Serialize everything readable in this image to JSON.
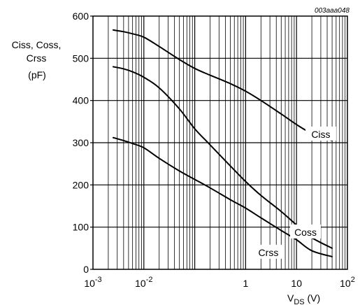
{
  "figure_id": "003aaa048",
  "chart_data": {
    "type": "line",
    "xscale": "log",
    "xlim": [
      0.001,
      100
    ],
    "ylim": [
      0,
      600
    ],
    "grid": true,
    "ylabel_lines": [
      "Ciss, Coss,",
      "Crss",
      "(pF)"
    ],
    "xlabel": {
      "main": "V",
      "sub": "DS",
      "unit": " (V)"
    },
    "xticks": [
      {
        "value": 0.001,
        "base": "10",
        "exp": "-3"
      },
      {
        "value": 0.01,
        "base": "10",
        "exp": "-2"
      },
      {
        "value": 1,
        "base": "1",
        "exp": ""
      },
      {
        "value": 10,
        "base": "10",
        "exp": ""
      },
      {
        "value": 100,
        "base": "10",
        "exp": "2"
      }
    ],
    "yticks": [
      0,
      100,
      200,
      300,
      400,
      500,
      600
    ],
    "series": [
      {
        "name": "Ciss",
        "x": [
          0.0025,
          0.004,
          0.006,
          0.01,
          0.02,
          0.05,
          0.1,
          0.2,
          0.5,
          1,
          2,
          5,
          10,
          20,
          50
        ],
        "y": [
          567,
          563,
          558,
          550,
          528,
          497,
          476,
          460,
          440,
          422,
          400,
          368,
          343,
          322,
          305
        ]
      },
      {
        "name": "Coss",
        "x": [
          0.0025,
          0.004,
          0.006,
          0.01,
          0.02,
          0.05,
          0.1,
          0.2,
          0.5,
          1,
          2,
          5,
          10,
          20,
          50
        ],
        "y": [
          480,
          475,
          468,
          455,
          430,
          380,
          333,
          295,
          245,
          208,
          175,
          137,
          105,
          75,
          50
        ]
      },
      {
        "name": "Crss",
        "x": [
          0.0025,
          0.004,
          0.006,
          0.01,
          0.02,
          0.05,
          0.1,
          0.2,
          0.5,
          1,
          2,
          5,
          10,
          20,
          50
        ],
        "y": [
          312,
          305,
          298,
          288,
          263,
          233,
          213,
          193,
          165,
          145,
          122,
          92,
          70,
          44,
          30
        ]
      }
    ]
  }
}
